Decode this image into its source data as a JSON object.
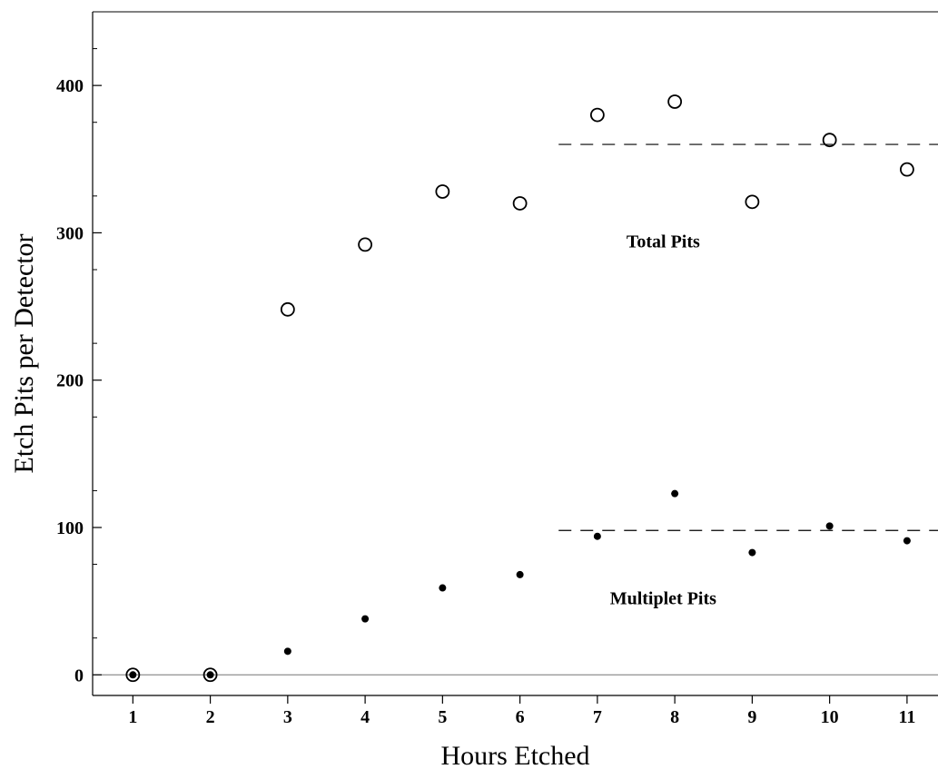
{
  "chart_data": {
    "type": "scatter",
    "xlabel": "Hours Etched",
    "ylabel": "Etch Pits per Detector",
    "xlim": [
      0.48,
      11.4
    ],
    "ylim": [
      -14,
      450
    ],
    "x_ticks": [
      1,
      2,
      3,
      4,
      5,
      6,
      7,
      8,
      9,
      10,
      11
    ],
    "y_ticks": [
      0,
      100,
      200,
      300,
      400
    ],
    "grid": false,
    "series": [
      {
        "marker": "open-circle",
        "x": [
          1,
          2,
          3,
          4,
          5,
          6,
          7,
          8,
          9,
          10,
          11
        ],
        "y": [
          0,
          0,
          248,
          292,
          328,
          320,
          380,
          389,
          321,
          363,
          343
        ]
      },
      {
        "marker": "filled-dot",
        "x": [
          1,
          2,
          3,
          4,
          5,
          6,
          7,
          8,
          9,
          10,
          11
        ],
        "y": [
          0,
          0,
          16,
          38,
          59,
          68,
          94,
          123,
          83,
          101,
          91
        ]
      }
    ],
    "reference_lines": [
      {
        "y": 360,
        "x_start": 6.5,
        "style": "dashed"
      },
      {
        "y": 98,
        "x_start": 6.5,
        "style": "dashed"
      },
      {
        "y": 0,
        "style": "solid"
      }
    ],
    "annotations": [
      {
        "text": "Total Pits",
        "x": 7.85,
        "y": 290
      },
      {
        "text": "Multiplet Pits",
        "x": 7.85,
        "y": 48
      }
    ]
  }
}
